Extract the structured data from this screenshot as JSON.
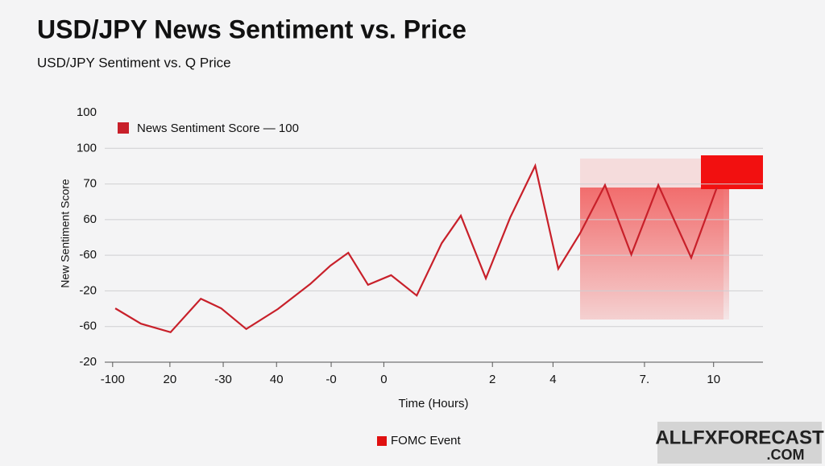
{
  "chart_data": {
    "type": "line",
    "title": "USD/JPY News Sentiment vs. Price",
    "subtitle": "USD/JPY Sentiment vs. Q Price",
    "x_label": "Time (Hours)",
    "y_label": "New Sentiment Score",
    "legend_label": "News Sentiment Score — 100",
    "event_label": "FOMC Event",
    "watermark": [
      "ALLFXFORECAST",
      ".COM"
    ],
    "xlim": [
      0,
      100
    ],
    "xticks": [
      {
        "value": 1.2,
        "label": "-100"
      },
      {
        "value": 9.9,
        "label": "20"
      },
      {
        "value": 18.0,
        "label": "-30"
      },
      {
        "value": 26.1,
        "label": "40"
      },
      {
        "value": 34.4,
        "label": "-0"
      },
      {
        "value": 42.4,
        "label": "0"
      },
      {
        "value": 58.9,
        "label": "2"
      },
      {
        "value": 68.1,
        "label": "4"
      },
      {
        "value": 82.0,
        "label": "7."
      },
      {
        "value": 92.5,
        "label": "10"
      }
    ],
    "ylim": [
      20,
      90
    ],
    "yticks": [
      {
        "value": 90,
        "label": "100"
      },
      {
        "value": 80,
        "label": "100"
      },
      70,
      60,
      {
        "value": 50,
        "label": "-60"
      },
      {
        "value": 40,
        "label": "-20"
      },
      {
        "value": 30,
        "label": "-60"
      },
      {
        "value": 20,
        "label": "-20"
      }
    ],
    "grid": true,
    "series": [
      {
        "name": "News Sentiment Score",
        "color": "#c8202a",
        "x": [
          1.6,
          5.5,
          10.0,
          14.6,
          17.7,
          21.5,
          26.3,
          31.2,
          34.3,
          37.0,
          40.0,
          43.5,
          47.4,
          51.2,
          54.1,
          57.9,
          61.6,
          65.4,
          68.9,
          72.2,
          76.0,
          80.0,
          84.1,
          89.1,
          93.0
        ],
        "values": [
          35.1,
          30.8,
          28.4,
          37.8,
          35.1,
          29.3,
          34.9,
          41.9,
          47.1,
          50.7,
          41.7,
          44.4,
          38.7,
          53.4,
          61.1,
          43.5,
          60.6,
          75.1,
          46.2,
          56.1,
          69.7,
          50.2,
          69.7,
          49.3,
          69.0
        ]
      }
    ]
  }
}
